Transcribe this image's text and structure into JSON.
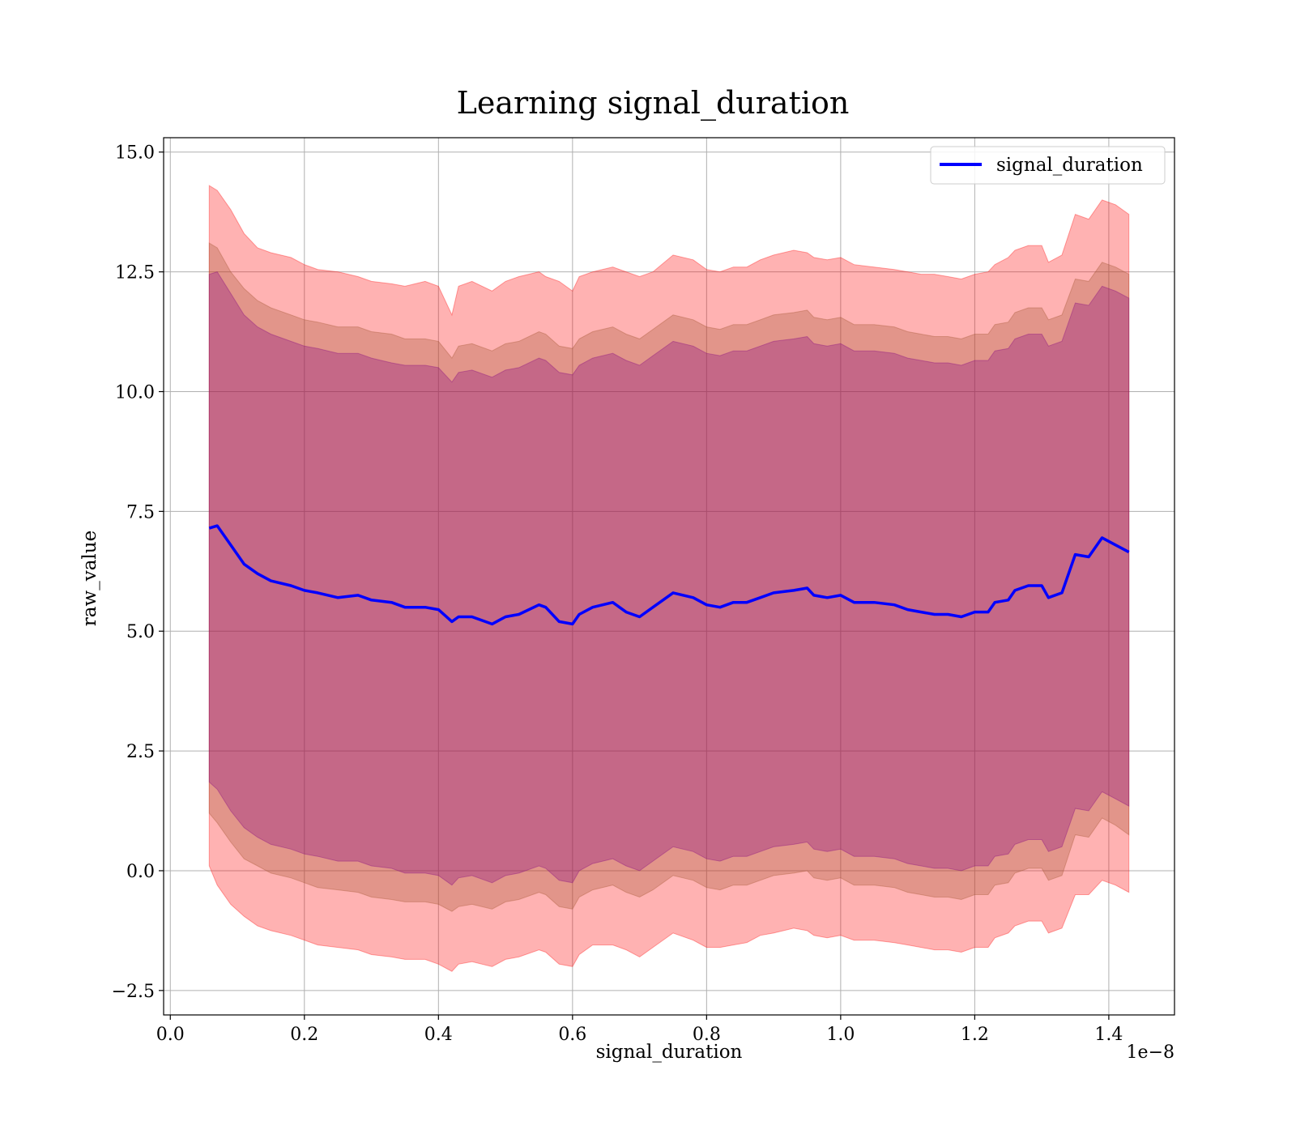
{
  "chart_data": {
    "type": "line",
    "title": "Learning signal_duration",
    "xlabel": "signal_duration",
    "ylabel": "raw_value",
    "x_offset_text": "1e−8",
    "xlim": [
      -0.01,
      1.498
    ],
    "ylim": [
      -3.01,
      15.3
    ],
    "x_ticks": [
      0.0,
      0.2,
      0.4,
      0.6,
      0.8,
      1.0,
      1.2,
      1.4
    ],
    "x_tick_labels": [
      "0.0",
      "0.2",
      "0.4",
      "0.6",
      "0.8",
      "1.0",
      "1.2",
      "1.4"
    ],
    "y_ticks": [
      -2.5,
      0.0,
      2.5,
      5.0,
      7.5,
      10.0,
      12.5,
      15.0
    ],
    "y_tick_labels": [
      "−2.5",
      "0.0",
      "2.5",
      "5.0",
      "7.5",
      "10.0",
      "12.5",
      "15.0"
    ],
    "grid": true,
    "legend": {
      "position": "top-right",
      "entries": [
        "signal_duration"
      ]
    },
    "colors": {
      "mean_line": "#0000ff",
      "band_3sigma": "#ff0000",
      "band_2sigma": "#a0522d",
      "band_1sigma": "#800080",
      "grid": "#b0b0b0"
    },
    "series": [
      {
        "name": "signal_duration",
        "x": [
          0.058,
          0.07,
          0.09,
          0.11,
          0.13,
          0.15,
          0.18,
          0.2,
          0.22,
          0.25,
          0.28,
          0.3,
          0.33,
          0.35,
          0.38,
          0.4,
          0.42,
          0.43,
          0.45,
          0.48,
          0.5,
          0.52,
          0.55,
          0.56,
          0.58,
          0.6,
          0.61,
          0.63,
          0.66,
          0.68,
          0.7,
          0.72,
          0.75,
          0.78,
          0.8,
          0.82,
          0.84,
          0.86,
          0.88,
          0.9,
          0.93,
          0.95,
          0.96,
          0.98,
          1.0,
          1.02,
          1.05,
          1.08,
          1.1,
          1.12,
          1.14,
          1.16,
          1.18,
          1.2,
          1.22,
          1.23,
          1.25,
          1.26,
          1.28,
          1.3,
          1.31,
          1.33,
          1.35,
          1.37,
          1.39,
          1.41,
          1.43
        ],
        "y": [
          7.15,
          7.2,
          6.8,
          6.4,
          6.2,
          6.05,
          5.95,
          5.85,
          5.8,
          5.7,
          5.75,
          5.65,
          5.6,
          5.5,
          5.5,
          5.45,
          5.2,
          5.3,
          5.3,
          5.15,
          5.3,
          5.35,
          5.55,
          5.5,
          5.2,
          5.15,
          5.35,
          5.5,
          5.6,
          5.4,
          5.3,
          5.5,
          5.8,
          5.7,
          5.55,
          5.5,
          5.6,
          5.6,
          5.7,
          5.8,
          5.85,
          5.9,
          5.75,
          5.7,
          5.75,
          5.6,
          5.6,
          5.55,
          5.45,
          5.4,
          5.35,
          5.35,
          5.3,
          5.4,
          5.4,
          5.6,
          5.65,
          5.85,
          5.95,
          5.95,
          5.7,
          5.8,
          6.6,
          6.55,
          6.95,
          6.8,
          6.65
        ]
      }
    ],
    "bands": [
      {
        "name": "3-sigma",
        "upper": [
          14.3,
          14.2,
          13.8,
          13.3,
          13.0,
          12.9,
          12.8,
          12.65,
          12.55,
          12.5,
          12.4,
          12.3,
          12.25,
          12.2,
          12.3,
          12.2,
          11.6,
          12.2,
          12.3,
          12.1,
          12.3,
          12.4,
          12.5,
          12.4,
          12.3,
          12.1,
          12.4,
          12.5,
          12.6,
          12.5,
          12.4,
          12.5,
          12.85,
          12.75,
          12.55,
          12.5,
          12.6,
          12.6,
          12.75,
          12.85,
          12.95,
          12.9,
          12.8,
          12.75,
          12.8,
          12.65,
          12.6,
          12.55,
          12.5,
          12.45,
          12.45,
          12.4,
          12.35,
          12.45,
          12.5,
          12.65,
          12.8,
          12.95,
          13.05,
          13.05,
          12.7,
          12.85,
          13.7,
          13.6,
          14.0,
          13.9,
          13.7
        ],
        "lower": [
          0.1,
          -0.3,
          -0.7,
          -0.95,
          -1.15,
          -1.25,
          -1.35,
          -1.45,
          -1.55,
          -1.6,
          -1.65,
          -1.75,
          -1.8,
          -1.85,
          -1.85,
          -1.95,
          -2.1,
          -1.95,
          -1.9,
          -2.0,
          -1.85,
          -1.8,
          -1.65,
          -1.7,
          -1.95,
          -2.0,
          -1.75,
          -1.55,
          -1.55,
          -1.65,
          -1.8,
          -1.6,
          -1.3,
          -1.45,
          -1.6,
          -1.6,
          -1.55,
          -1.5,
          -1.35,
          -1.3,
          -1.2,
          -1.25,
          -1.35,
          -1.4,
          -1.35,
          -1.45,
          -1.45,
          -1.5,
          -1.55,
          -1.6,
          -1.65,
          -1.65,
          -1.7,
          -1.6,
          -1.6,
          -1.4,
          -1.3,
          -1.15,
          -1.05,
          -1.05,
          -1.3,
          -1.2,
          -0.5,
          -0.5,
          -0.2,
          -0.3,
          -0.45
        ]
      },
      {
        "name": "2-sigma",
        "upper": [
          13.1,
          13.0,
          12.5,
          12.15,
          11.9,
          11.75,
          11.6,
          11.5,
          11.45,
          11.35,
          11.35,
          11.25,
          11.2,
          11.1,
          11.1,
          11.05,
          10.7,
          10.95,
          11.0,
          10.85,
          11.0,
          11.05,
          11.25,
          11.2,
          10.95,
          10.9,
          11.1,
          11.25,
          11.35,
          11.2,
          11.1,
          11.3,
          11.6,
          11.5,
          11.35,
          11.3,
          11.4,
          11.4,
          11.5,
          11.6,
          11.65,
          11.7,
          11.55,
          11.5,
          11.55,
          11.4,
          11.4,
          11.35,
          11.25,
          11.2,
          11.15,
          11.15,
          11.1,
          11.2,
          11.2,
          11.4,
          11.45,
          11.65,
          11.75,
          11.75,
          11.5,
          11.6,
          12.35,
          12.3,
          12.7,
          12.6,
          12.45
        ],
        "lower": [
          1.2,
          1.0,
          0.6,
          0.25,
          0.1,
          -0.05,
          -0.15,
          -0.25,
          -0.35,
          -0.4,
          -0.45,
          -0.55,
          -0.6,
          -0.65,
          -0.65,
          -0.7,
          -0.85,
          -0.75,
          -0.7,
          -0.8,
          -0.65,
          -0.6,
          -0.45,
          -0.5,
          -0.75,
          -0.8,
          -0.55,
          -0.4,
          -0.3,
          -0.45,
          -0.55,
          -0.4,
          -0.1,
          -0.2,
          -0.35,
          -0.4,
          -0.3,
          -0.3,
          -0.2,
          -0.1,
          -0.05,
          0.0,
          -0.15,
          -0.2,
          -0.15,
          -0.3,
          -0.3,
          -0.35,
          -0.45,
          -0.5,
          -0.55,
          -0.55,
          -0.6,
          -0.5,
          -0.5,
          -0.3,
          -0.25,
          -0.05,
          0.05,
          0.05,
          -0.2,
          -0.1,
          0.75,
          0.7,
          1.1,
          0.95,
          0.75
        ]
      },
      {
        "name": "1-sigma",
        "upper": [
          12.45,
          12.5,
          12.05,
          11.6,
          11.35,
          11.2,
          11.05,
          10.95,
          10.9,
          10.8,
          10.8,
          10.7,
          10.6,
          10.55,
          10.55,
          10.5,
          10.2,
          10.4,
          10.45,
          10.3,
          10.45,
          10.5,
          10.7,
          10.65,
          10.4,
          10.35,
          10.55,
          10.7,
          10.8,
          10.65,
          10.55,
          10.75,
          11.05,
          10.95,
          10.8,
          10.75,
          10.85,
          10.85,
          10.95,
          11.05,
          11.1,
          11.15,
          11.0,
          10.95,
          11.0,
          10.85,
          10.85,
          10.8,
          10.7,
          10.65,
          10.6,
          10.6,
          10.55,
          10.65,
          10.65,
          10.85,
          10.9,
          11.1,
          11.2,
          11.2,
          10.95,
          11.05,
          11.85,
          11.8,
          12.2,
          12.1,
          11.95
        ],
        "lower": [
          1.85,
          1.7,
          1.25,
          0.9,
          0.7,
          0.55,
          0.45,
          0.35,
          0.3,
          0.2,
          0.2,
          0.1,
          0.05,
          -0.05,
          -0.05,
          -0.1,
          -0.3,
          -0.15,
          -0.1,
          -0.25,
          -0.1,
          -0.05,
          0.1,
          0.05,
          -0.2,
          -0.25,
          0.0,
          0.15,
          0.25,
          0.1,
          0.0,
          0.2,
          0.5,
          0.4,
          0.25,
          0.2,
          0.3,
          0.3,
          0.4,
          0.5,
          0.55,
          0.6,
          0.45,
          0.4,
          0.45,
          0.3,
          0.3,
          0.25,
          0.15,
          0.1,
          0.05,
          0.05,
          0.0,
          0.1,
          0.1,
          0.3,
          0.35,
          0.55,
          0.65,
          0.65,
          0.4,
          0.5,
          1.3,
          1.25,
          1.65,
          1.5,
          1.35
        ]
      }
    ]
  }
}
